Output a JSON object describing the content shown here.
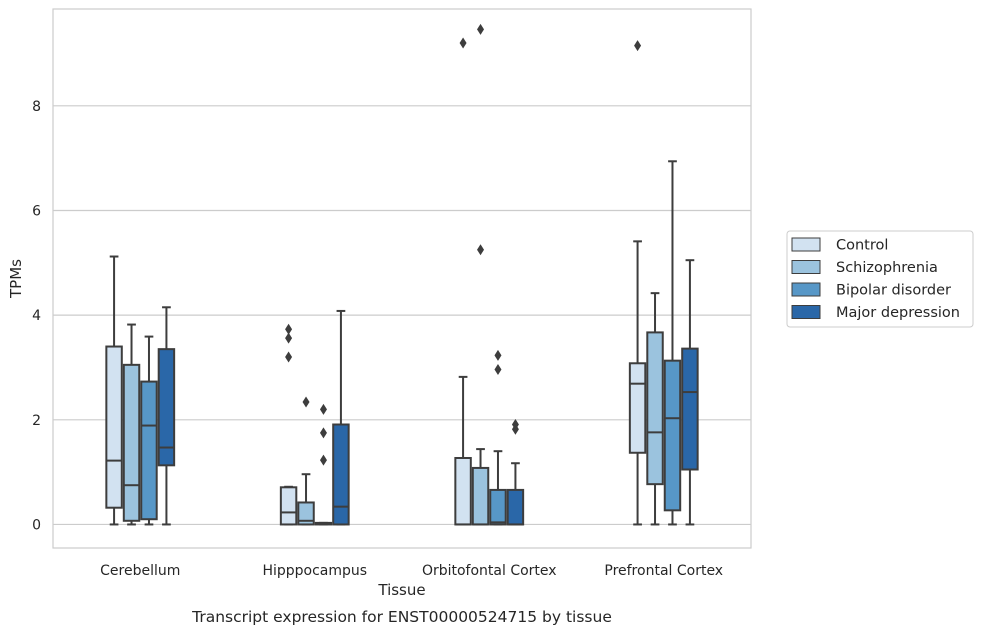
{
  "caption": "Transcript expression for ENST00000524715 by tissue",
  "chart_data": {
    "type": "box",
    "xlabel": "Tissue",
    "ylabel": "TPMs",
    "ylim": [
      -0.45,
      9.85
    ],
    "yticks": [
      0,
      2,
      4,
      6,
      8
    ],
    "grid": "y",
    "legend_position": "right",
    "categories": [
      "Cerebellum",
      "Hipppocampus",
      "Orbitofontal Cortex",
      "Prefrontal Cortex"
    ],
    "series": [
      {
        "name": "Control",
        "color": "#d2e2f1",
        "boxes": [
          {
            "whislo": 0.0,
            "q1": 0.32,
            "med": 1.22,
            "q3": 3.4,
            "whishi": 5.12,
            "fliers": []
          },
          {
            "whislo": 0.0,
            "q1": 0.0,
            "med": 0.23,
            "q3": 0.71,
            "whishi": 0.72,
            "fliers": [
              3.73,
              3.56,
              3.2
            ]
          },
          {
            "whislo": 0.0,
            "q1": 0.0,
            "med": 0.0,
            "q3": 1.27,
            "whishi": 2.82,
            "fliers": [
              9.2
            ]
          },
          {
            "whislo": 0.0,
            "q1": 1.37,
            "med": 2.69,
            "q3": 3.08,
            "whishi": 5.41,
            "fliers": [
              9.15
            ]
          }
        ]
      },
      {
        "name": "Schizophrenia",
        "color": "#9bc3de",
        "boxes": [
          {
            "whislo": 0.0,
            "q1": 0.07,
            "med": 0.75,
            "q3": 3.05,
            "whishi": 3.82,
            "fliers": []
          },
          {
            "whislo": 0.0,
            "q1": 0.0,
            "med": 0.07,
            "q3": 0.42,
            "whishi": 0.96,
            "fliers": [
              2.34
            ]
          },
          {
            "whislo": 0.0,
            "q1": 0.0,
            "med": 0.0,
            "q3": 1.08,
            "whishi": 1.44,
            "fliers": [
              9.46,
              5.25
            ]
          },
          {
            "whislo": 0.0,
            "q1": 0.77,
            "med": 1.76,
            "q3": 3.67,
            "whishi": 4.42,
            "fliers": []
          }
        ]
      },
      {
        "name": "Bipolar disorder",
        "color": "#5797c7",
        "boxes": [
          {
            "whislo": 0.0,
            "q1": 0.1,
            "med": 1.89,
            "q3": 2.73,
            "whishi": 3.59,
            "fliers": []
          },
          {
            "whislo": 0.0,
            "q1": 0.0,
            "med": 0.01,
            "q3": 0.03,
            "whishi": 0.03,
            "fliers": [
              2.2,
              1.75,
              1.23
            ]
          },
          {
            "whislo": 0.0,
            "q1": 0.0,
            "med": 0.04,
            "q3": 0.66,
            "whishi": 1.4,
            "fliers": [
              3.23,
              2.96
            ]
          },
          {
            "whislo": 0.0,
            "q1": 0.27,
            "med": 2.03,
            "q3": 3.13,
            "whishi": 6.94,
            "fliers": []
          }
        ]
      },
      {
        "name": "Major depression",
        "color": "#2a67a8",
        "boxes": [
          {
            "whislo": 0.0,
            "q1": 1.13,
            "med": 1.47,
            "q3": 3.35,
            "whishi": 4.15,
            "fliers": []
          },
          {
            "whislo": 0.0,
            "q1": 0.0,
            "med": 0.34,
            "q3": 1.91,
            "whishi": 4.08,
            "fliers": []
          },
          {
            "whislo": 0.0,
            "q1": 0.0,
            "med": 0.0,
            "q3": 0.66,
            "whishi": 1.17,
            "fliers": [
              1.91,
              1.82
            ]
          },
          {
            "whislo": 0.0,
            "q1": 1.05,
            "med": 2.53,
            "q3": 3.36,
            "whishi": 5.05,
            "fliers": []
          }
        ]
      }
    ]
  }
}
